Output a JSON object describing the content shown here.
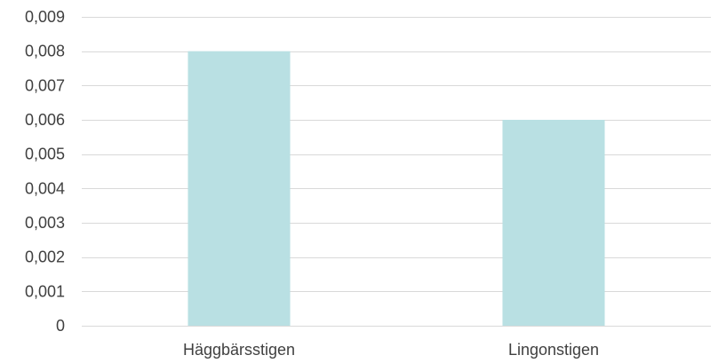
{
  "chart_data": {
    "type": "bar",
    "categories": [
      "Häggbärsstigen",
      "Lingonstigen"
    ],
    "values": [
      0.008,
      0.006
    ],
    "ylim": [
      0,
      0.009
    ],
    "yticks": [
      0,
      0.001,
      0.002,
      0.003,
      0.004,
      0.005,
      0.006,
      0.007,
      0.008,
      0.009
    ],
    "ytick_labels": [
      "0",
      "0,001",
      "0,002",
      "0,003",
      "0,004",
      "0,005",
      "0,006",
      "0,007",
      "0,008",
      "0,009"
    ],
    "title": "",
    "xlabel": "",
    "ylabel": "",
    "grid": true,
    "legend": "none",
    "colors": {
      "bar": "#b9e0e3",
      "grid": "#d9d9d9",
      "text": "#404040"
    }
  }
}
